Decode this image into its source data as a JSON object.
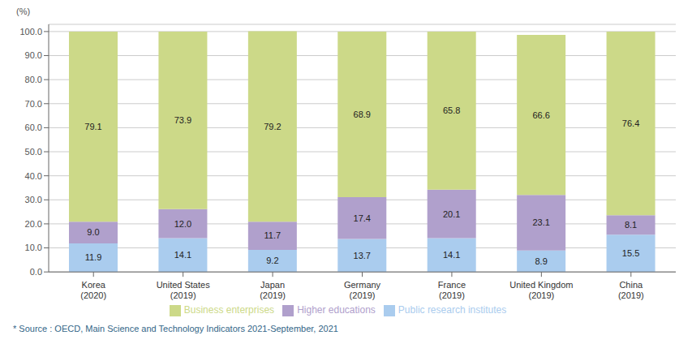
{
  "chart_data": {
    "type": "bar",
    "stacked": true,
    "data_labels": true,
    "grid": true,
    "legend": "bottom",
    "ylabel": "(%)",
    "annotations": [
      "* Source : OECD, Main Science and Technology Indicators 2021-September, 2021"
    ],
    "categories": [
      "Korea\n(2020)",
      "United States\n(2019)",
      "Japan\n(2019)",
      "Germany\n(2019)",
      "France\n(2019)",
      "United Kingdom\n(2019)",
      "China\n(2019)"
    ],
    "series": [
      {
        "name": "Public research institutes",
        "color": "#aaccee",
        "values": [
          11.9,
          14.1,
          9.2,
          13.7,
          14.1,
          8.9,
          15.5
        ],
        "value_labels": [
          "11.9",
          "14.1",
          "9.2",
          "13.7",
          "14.1",
          "8.9",
          "15.5"
        ]
      },
      {
        "name": "Higher educations",
        "color": "#b0a0cc",
        "values": [
          9.0,
          12.0,
          11.7,
          17.4,
          20.1,
          23.1,
          8.1
        ],
        "value_labels": [
          "9.0",
          "12.0",
          "11.7",
          "17.4",
          "20.1",
          "23.1",
          "8.1"
        ]
      },
      {
        "name": "Business enterprises",
        "color": "#ccd988",
        "values": [
          79.1,
          73.9,
          79.2,
          68.9,
          65.8,
          66.6,
          76.4
        ],
        "value_labels": [
          "79.1",
          "73.9",
          "79.2",
          "68.9",
          "65.8",
          "66.6",
          "76.4"
        ]
      }
    ],
    "ylim": [
      0,
      103
    ],
    "yticks": [
      {
        "value": 0,
        "label": "0.0"
      },
      {
        "value": 10,
        "label": "10.0"
      },
      {
        "value": 20,
        "label": "20.0"
      },
      {
        "value": 30,
        "label": "30.0"
      },
      {
        "value": 40,
        "label": "40.0"
      },
      {
        "value": 50,
        "label": "50.0"
      },
      {
        "value": 60,
        "label": "60.0"
      },
      {
        "value": 70,
        "label": "70.0"
      },
      {
        "value": 80,
        "label": "80.0"
      },
      {
        "value": 90,
        "label": "90.0"
      },
      {
        "value": 100,
        "label": "100.0"
      }
    ]
  }
}
